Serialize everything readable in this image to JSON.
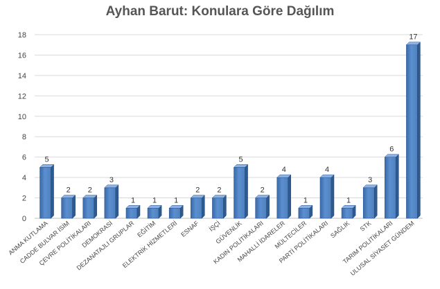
{
  "chart_data": {
    "type": "bar",
    "title": "Ayhan Barut: Konulara Göre Dağılım",
    "xlabel": "",
    "ylabel": "",
    "ylim": [
      0,
      18
    ],
    "yticks": [
      0,
      2,
      4,
      6,
      8,
      10,
      12,
      14,
      16,
      18
    ],
    "grid": true,
    "legend": "none",
    "bar_color": "#4f81bd",
    "categories": [
      "ANMA KUTLAMA",
      "CADDE BULVAR İSİM",
      "ÇEVRE POLİTİKALARI",
      "DEMOKRASİ",
      "DEZANATAJLI GRUPLAR",
      "EĞİTİM",
      "ELEKTRİK HİZMETLERİ",
      "ESNAF",
      "İŞÇİ",
      "GÜVENLİK",
      "KADIN POLİTİKALARI",
      "MAHALLİ İDARELER",
      "MÜLTECİLER",
      "PARTİ POLİTİKALARI",
      "SAĞLIK",
      "STK",
      "TARIM POLİTİKALARI",
      "ULUSAL SİYASET GÜNDEM"
    ],
    "values": [
      5,
      2,
      2,
      3,
      1,
      1,
      1,
      2,
      2,
      5,
      2,
      4,
      1,
      4,
      1,
      3,
      6,
      17
    ],
    "data_labels": [
      "5",
      "2",
      "2",
      "3",
      "1",
      "1",
      "1",
      "2",
      "2",
      "5",
      "2",
      "4",
      "1",
      "4",
      "1",
      "3",
      "6",
      "17"
    ]
  }
}
